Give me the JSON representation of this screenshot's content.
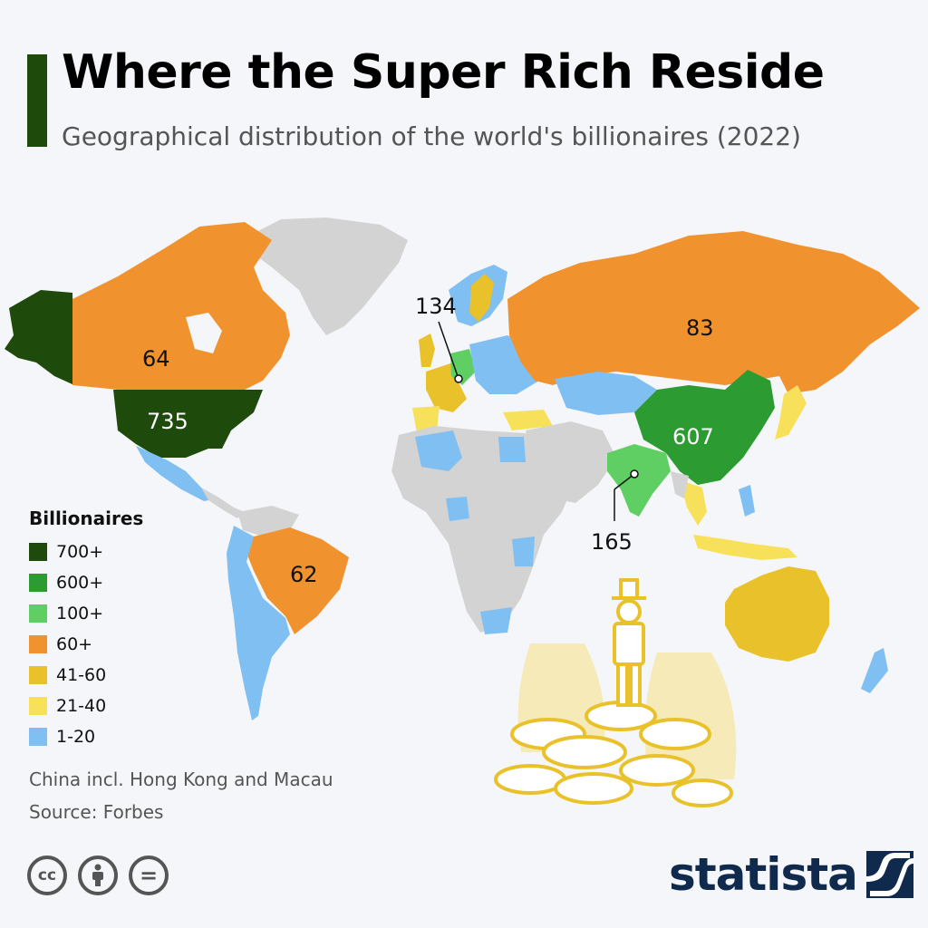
{
  "title": "Where the Super Rich Reside",
  "subtitle": "Geographical distribution of the world's billionaires (2022)",
  "legend": {
    "title": "Billionaires",
    "items": [
      {
        "label": "700+",
        "color": "#1e4a0b"
      },
      {
        "label": "600+",
        "color": "#2b9b32"
      },
      {
        "label": "100+",
        "color": "#5fcf63"
      },
      {
        "label": "60+",
        "color": "#f0922e"
      },
      {
        "label": "41-60",
        "color": "#e9c12b"
      },
      {
        "label": "21-40",
        "color": "#f8e15a"
      },
      {
        "label": "1-20",
        "color": "#7fbff2"
      }
    ]
  },
  "no_data_color": "#d3d3d3",
  "labels": {
    "usa": "735",
    "china": "607",
    "india": "165",
    "germany": "134",
    "russia": "83",
    "canada": "64",
    "brazil": "62"
  },
  "note": "China incl. Hong Kong and Macau",
  "source": "Source: Forbes",
  "brand": "statista",
  "icons": [
    "cc-icon",
    "attribution-icon",
    "no-derivatives-icon"
  ],
  "cc_text": "cc",
  "nd_text": "="
}
